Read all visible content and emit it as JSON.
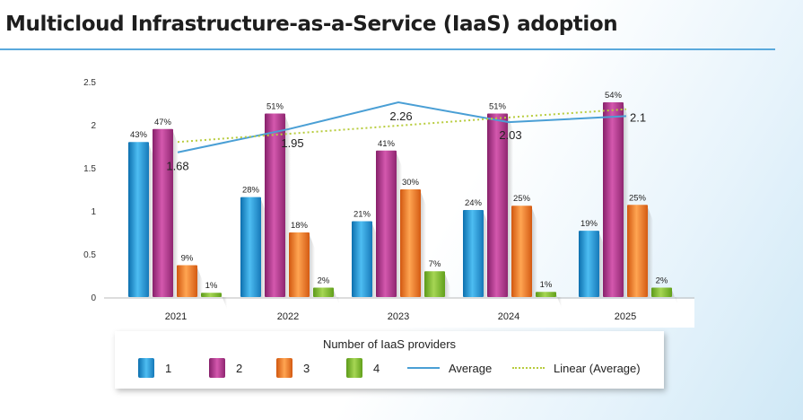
{
  "title": "Multicloud Infrastructure-as-a-Service (IaaS) adoption",
  "colors": {
    "title_rule": "#5aa9dc",
    "series_1": "#1f95d6",
    "series_2": "#b5358f",
    "series_3": "#ef7a24",
    "series_4": "#7bb52b",
    "average": "#4a9fd5",
    "trend": "#b8cc3e"
  },
  "chart_data": {
    "type": "bar",
    "title": "Multicloud Infrastructure-as-a-Service (IaaS) adoption",
    "xlabel": "",
    "ylabel": "",
    "ylim": [
      0,
      2.5
    ],
    "yticks": [
      "0",
      "0.5",
      "1",
      "1.5",
      "2",
      "2.5"
    ],
    "ytick_values": [
      0,
      0.5,
      1,
      1.5,
      2,
      2.5
    ],
    "categories": [
      "2021",
      "2022",
      "2023",
      "2024",
      "2025"
    ],
    "series": [
      {
        "name": "1",
        "values": [
          1.8,
          1.16,
          0.88,
          1.01,
          0.77
        ],
        "labels": [
          "43%",
          "28%",
          "21%",
          "24%",
          "19%"
        ]
      },
      {
        "name": "2",
        "values": [
          1.95,
          2.13,
          1.7,
          2.13,
          2.26
        ],
        "labels": [
          "47%",
          "51%",
          "41%",
          "51%",
          "54%"
        ]
      },
      {
        "name": "3",
        "values": [
          0.37,
          0.75,
          1.25,
          1.06,
          1.07
        ],
        "labels": [
          "9%",
          "18%",
          "30%",
          "25%",
          "25%"
        ]
      },
      {
        "name": "4",
        "values": [
          0.05,
          0.11,
          0.3,
          0.06,
          0.11
        ],
        "labels": [
          "1%",
          "2%",
          "7%",
          "1%",
          "2%"
        ]
      }
    ],
    "average": {
      "name": "Average",
      "values": [
        1.68,
        1.95,
        2.26,
        2.03,
        2.1
      ],
      "labels": [
        "1.68",
        "1.95",
        "2.26",
        "2.03",
        "2.1"
      ]
    },
    "trendline": {
      "name": "Linear (Average)",
      "values": [
        1.8,
        1.895,
        1.99,
        2.085,
        2.18
      ]
    }
  },
  "legend": {
    "title": "Number of IaaS providers",
    "items": [
      "1",
      "2",
      "3",
      "4",
      "Average",
      "Linear (Average)"
    ]
  }
}
